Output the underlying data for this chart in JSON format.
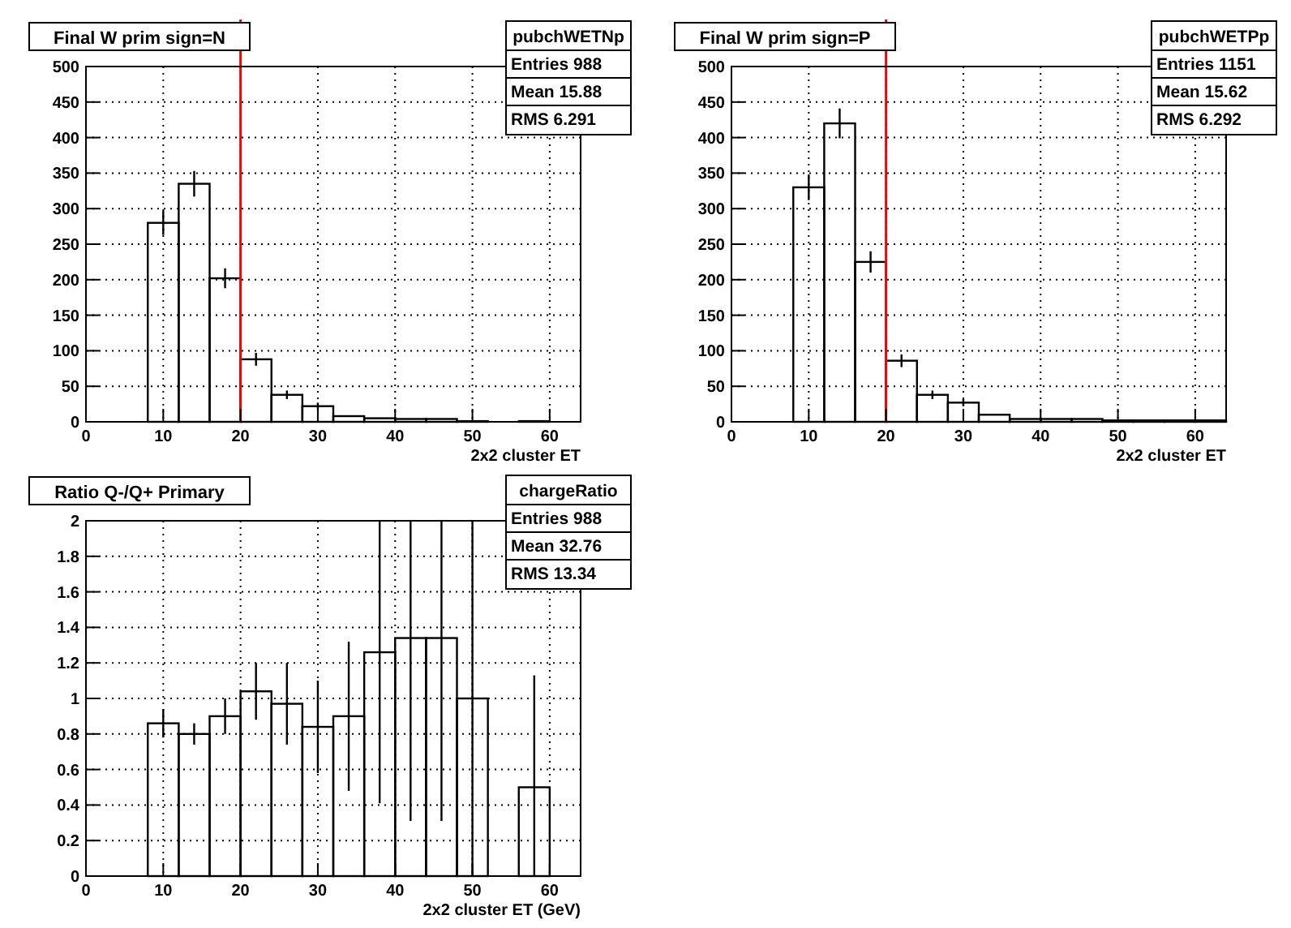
{
  "chart_data": [
    {
      "type": "histogram",
      "title": "Final W  prim sign=N",
      "xlabel": "2x2 cluster ET",
      "color": "#000000",
      "bins": [
        0,
        4,
        8,
        12,
        16,
        20,
        24,
        28,
        32,
        36,
        40,
        44,
        48,
        52,
        56,
        60,
        64
      ],
      "values": [
        0,
        0,
        280,
        335,
        202,
        88,
        38,
        22,
        8,
        5,
        4,
        4,
        1,
        0,
        1,
        0
      ],
      "errors": [
        null,
        null,
        17,
        18,
        14,
        9,
        6,
        5,
        null,
        null,
        null,
        null,
        null,
        null,
        null,
        null
      ],
      "xlim": [
        0,
        64
      ],
      "xticks": [
        0,
        10,
        20,
        30,
        40,
        50,
        60
      ],
      "ylim": [
        0,
        500
      ],
      "yticks": [
        0,
        50,
        100,
        150,
        200,
        250,
        300,
        350,
        400,
        450,
        500
      ],
      "grid": true,
      "ref_lines": [
        {
          "axis": "x",
          "value": 20,
          "color": "#ff0000"
        }
      ],
      "annotations": [
        "pubchWETNp",
        "Entries 988",
        "Mean 15.88",
        "RMS 6.291"
      ]
    },
    {
      "type": "histogram",
      "title": "Final W  prim sign=P",
      "xlabel": "2x2 cluster ET",
      "color": "#000000",
      "bins": [
        0,
        4,
        8,
        12,
        16,
        20,
        24,
        28,
        32,
        36,
        40,
        44,
        48,
        52,
        56,
        60,
        64
      ],
      "values": [
        0,
        0,
        330,
        420,
        225,
        86,
        38,
        27,
        10,
        4,
        4,
        4,
        2,
        2,
        2,
        2
      ],
      "errors": [
        null,
        null,
        18,
        21,
        15,
        9,
        6,
        5,
        null,
        null,
        null,
        null,
        null,
        null,
        null,
        null
      ],
      "xlim": [
        0,
        64
      ],
      "xticks": [
        0,
        10,
        20,
        30,
        40,
        50,
        60
      ],
      "ylim": [
        0,
        500
      ],
      "yticks": [
        0,
        50,
        100,
        150,
        200,
        250,
        300,
        350,
        400,
        450,
        500
      ],
      "grid": true,
      "ref_lines": [
        {
          "axis": "x",
          "value": 20,
          "color": "#ff0000"
        }
      ],
      "annotations": [
        "pubchWETPp",
        "Entries 1151",
        "Mean 15.62",
        "RMS 6.292"
      ]
    },
    {
      "type": "histogram",
      "title": "Ratio Q-/Q+ Primary",
      "xlabel": "2x2 cluster ET (GeV)",
      "color": "#000000",
      "bins": [
        0,
        4,
        8,
        12,
        16,
        20,
        24,
        28,
        32,
        36,
        40,
        44,
        48,
        52,
        56,
        60,
        64
      ],
      "values": [
        0,
        0,
        0.86,
        0.8,
        0.9,
        1.04,
        0.97,
        0.84,
        0.9,
        1.26,
        1.34,
        1.34,
        1.0,
        0,
        0.5,
        0
      ],
      "errors": [
        null,
        null,
        0.08,
        0.06,
        0.1,
        0.16,
        0.23,
        0.26,
        0.42,
        [
          0.41,
          2
        ],
        [
          0.31,
          2
        ],
        [
          0.31,
          2
        ],
        [
          0,
          2
        ],
        null,
        [
          0,
          1.13
        ],
        null
      ],
      "xlim": [
        0,
        64
      ],
      "xticks": [
        0,
        10,
        20,
        30,
        40,
        50,
        60
      ],
      "ylim": [
        0,
        2
      ],
      "yticks": [
        0,
        0.2,
        0.4,
        0.6,
        0.8,
        1,
        1.2,
        1.4,
        1.6,
        1.8,
        2
      ],
      "grid": true,
      "annotations": [
        "chargeRatio",
        "Entries 988",
        "Mean 32.76",
        "RMS 13.34"
      ]
    }
  ]
}
